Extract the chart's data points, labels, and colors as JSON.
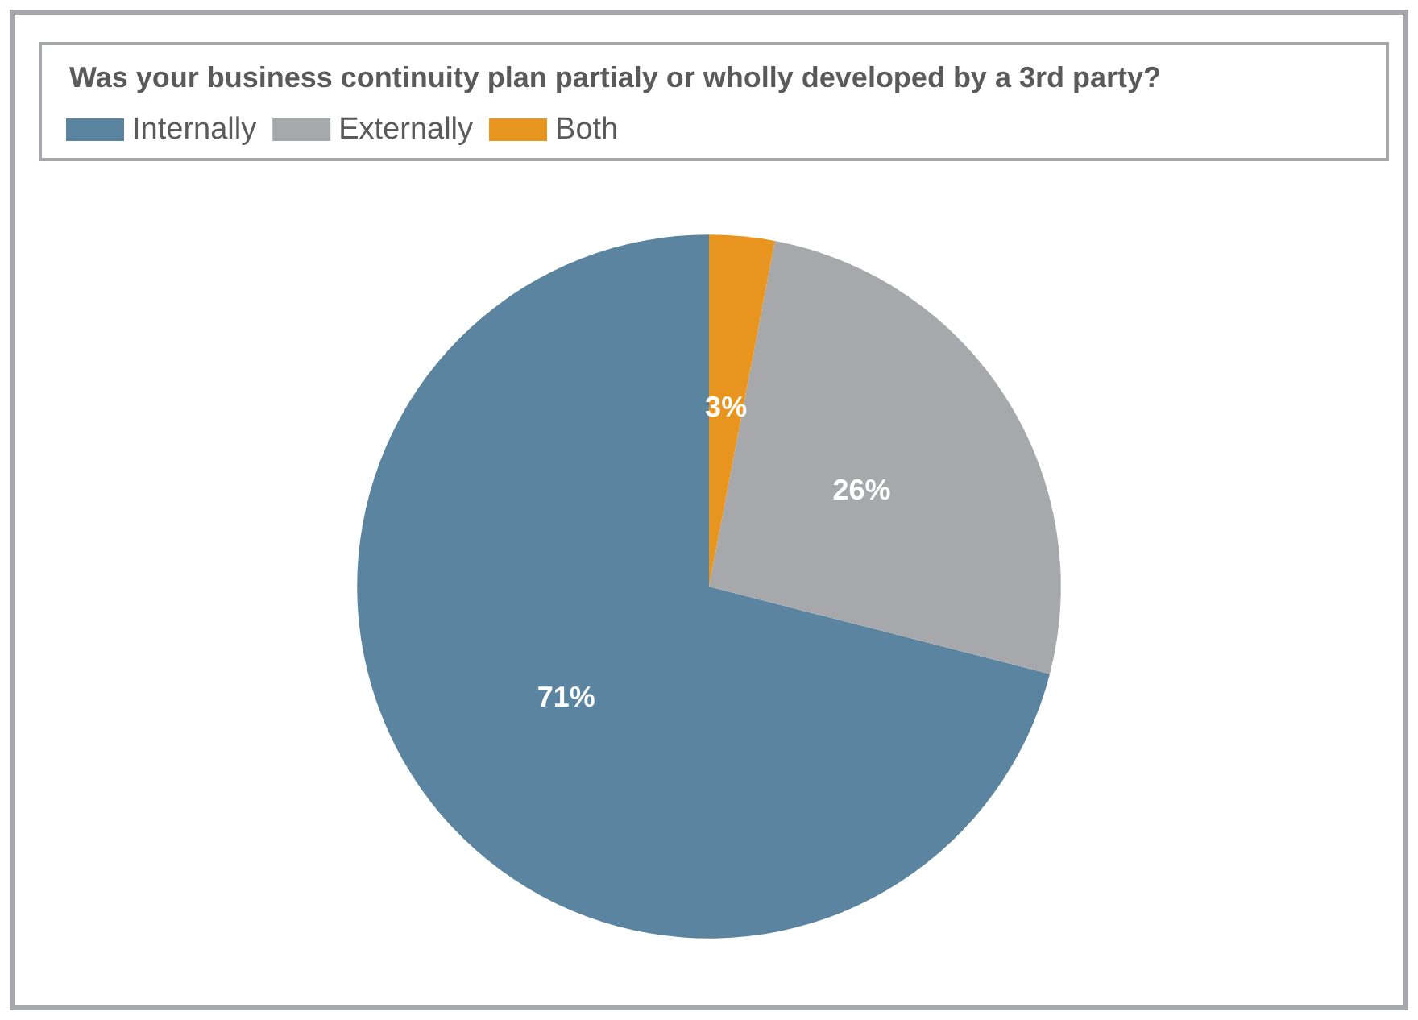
{
  "chart_data": {
    "type": "pie",
    "title": "Was your business continuity plan partialy or wholly developed by a 3rd party?",
    "categories": [
      "Internally",
      "Externally",
      "Both"
    ],
    "values": [
      71,
      26,
      3
    ],
    "colors": [
      "#5b84a0",
      "#a7a8ab",
      "#e8951f"
    ],
    "value_labels": [
      "71%",
      "26%",
      "3%"
    ],
    "legend": "top left"
  }
}
